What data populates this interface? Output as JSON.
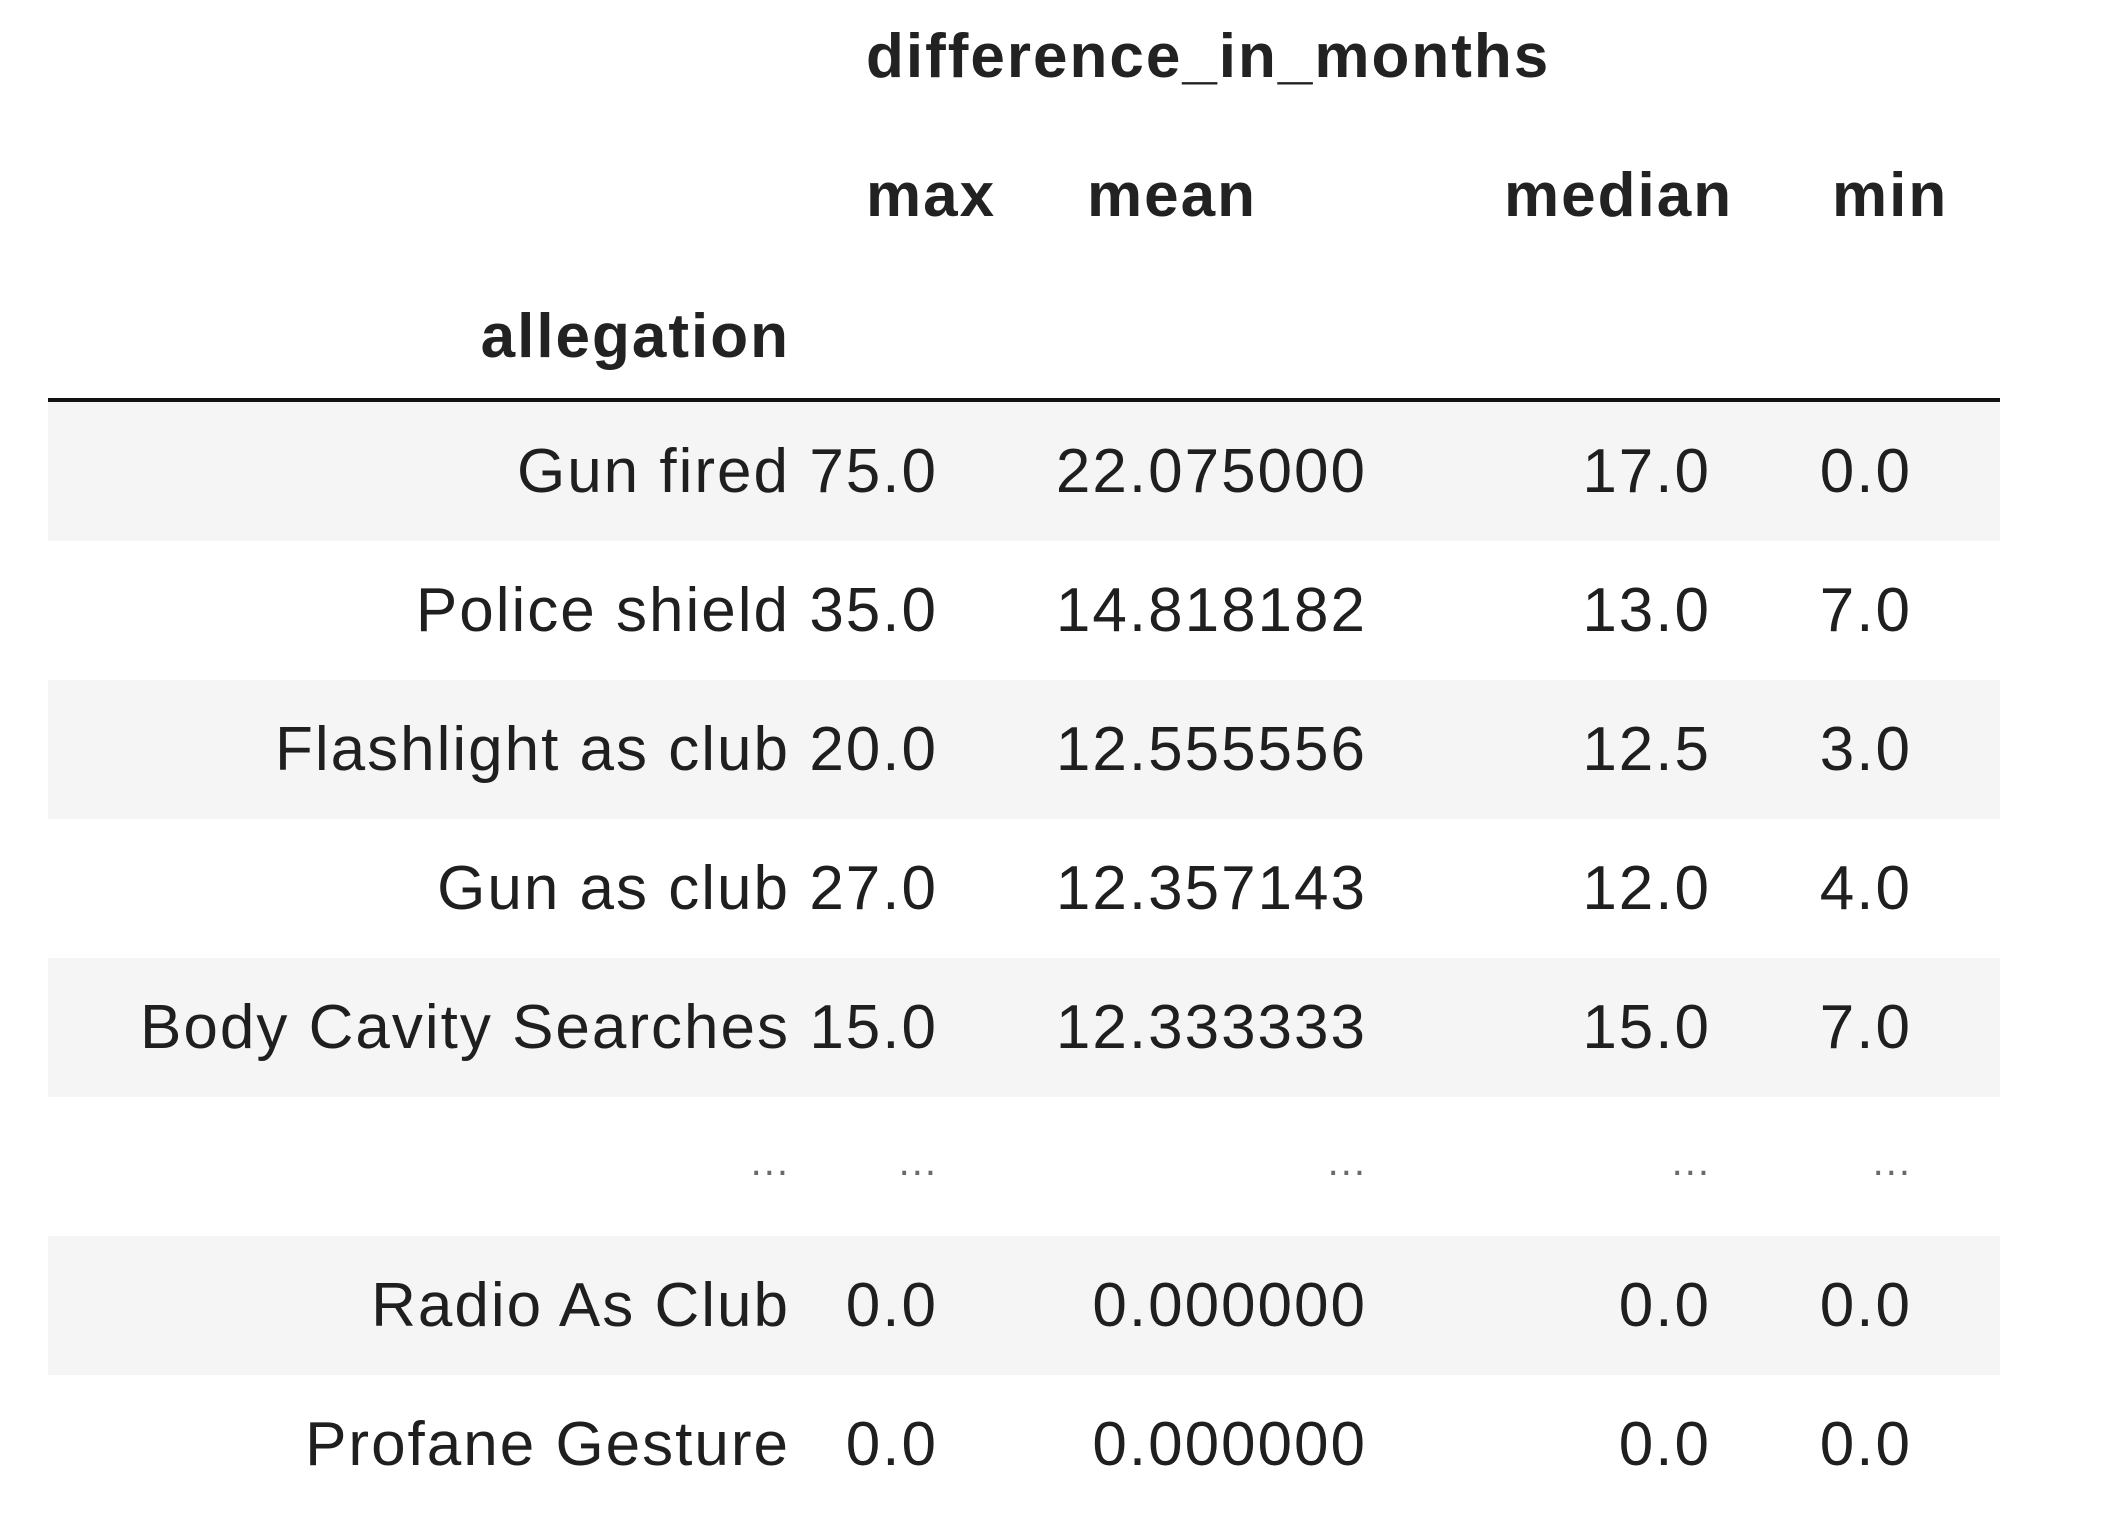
{
  "table": {
    "group_header": "difference_in_months",
    "columns": [
      "max",
      "mean",
      "median",
      "min"
    ],
    "index_name": "allegation",
    "rows": [
      {
        "label": "Gun fired",
        "max": "75.0",
        "mean": "22.075000",
        "median": "17.0",
        "min": "0.0"
      },
      {
        "label": "Police shield",
        "max": "35.0",
        "mean": "14.818182",
        "median": "13.0",
        "min": "7.0"
      },
      {
        "label": "Flashlight as club",
        "max": "20.0",
        "mean": "12.555556",
        "median": "12.5",
        "min": "3.0"
      },
      {
        "label": "Gun as club",
        "max": "27.0",
        "mean": "12.357143",
        "median": "12.0",
        "min": "4.0"
      },
      {
        "label": "Body Cavity Searches",
        "max": "15.0",
        "mean": "12.333333",
        "median": "15.0",
        "min": "7.0"
      },
      {
        "label": "...",
        "max": "...",
        "mean": "...",
        "median": "...",
        "min": "..."
      },
      {
        "label": "Radio As Club",
        "max": "0.0",
        "mean": "0.000000",
        "median": "0.0",
        "min": "0.0"
      },
      {
        "label": "Profane Gesture",
        "max": "0.0",
        "mean": "0.000000",
        "median": "0.0",
        "min": "0.0"
      }
    ]
  }
}
